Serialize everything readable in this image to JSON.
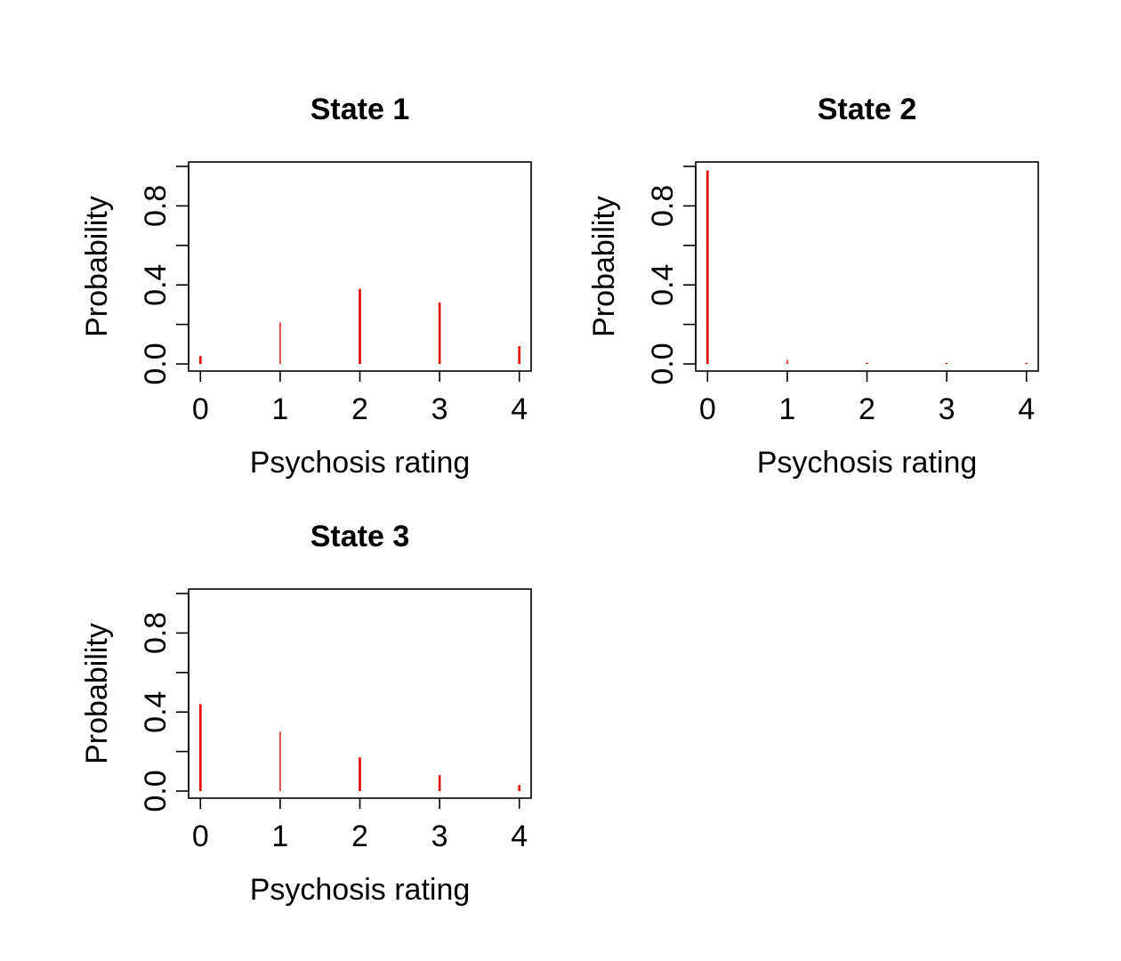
{
  "chart_data": [
    {
      "type": "bar",
      "title": "State 1",
      "xlabel": "Psychosis rating",
      "ylabel": "Probability",
      "categories": [
        0,
        1,
        2,
        3,
        4
      ],
      "values": [
        0.04,
        0.21,
        0.38,
        0.31,
        0.09
      ],
      "xlim": [
        0,
        4
      ],
      "ylim": [
        0,
        1
      ],
      "x_ticks": [
        "0",
        "1",
        "2",
        "3",
        "4"
      ],
      "y_ticks": [
        "0.0",
        "0.4",
        "0.8"
      ],
      "y_tick_values": [
        0,
        0.2,
        0.4,
        0.6,
        0.8,
        1.0
      ],
      "color": "#e00000",
      "grid": false
    },
    {
      "type": "bar",
      "title": "State 2",
      "xlabel": "Psychosis rating",
      "ylabel": "Probability",
      "categories": [
        0,
        1,
        2,
        3,
        4
      ],
      "values": [
        0.98,
        0.02,
        0.003,
        0.002,
        0.002
      ],
      "xlim": [
        0,
        4
      ],
      "ylim": [
        0,
        1
      ],
      "x_ticks": [
        "0",
        "1",
        "2",
        "3",
        "4"
      ],
      "y_ticks": [
        "0.0",
        "0.4",
        "0.8"
      ],
      "y_tick_values": [
        0,
        0.2,
        0.4,
        0.6,
        0.8,
        1.0
      ],
      "color": "#e00000",
      "grid": false
    },
    {
      "type": "bar",
      "title": "State 3",
      "xlabel": "Psychosis rating",
      "ylabel": "Probability",
      "categories": [
        0,
        1,
        2,
        3,
        4
      ],
      "values": [
        0.44,
        0.3,
        0.17,
        0.08,
        0.03
      ],
      "xlim": [
        0,
        4
      ],
      "ylim": [
        0,
        1
      ],
      "x_ticks": [
        "0",
        "1",
        "2",
        "3",
        "4"
      ],
      "y_ticks": [
        "0.0",
        "0.4",
        "0.8"
      ],
      "y_tick_values": [
        0,
        0.2,
        0.4,
        0.6,
        0.8,
        1.0
      ],
      "color": "#e00000",
      "grid": false
    }
  ]
}
